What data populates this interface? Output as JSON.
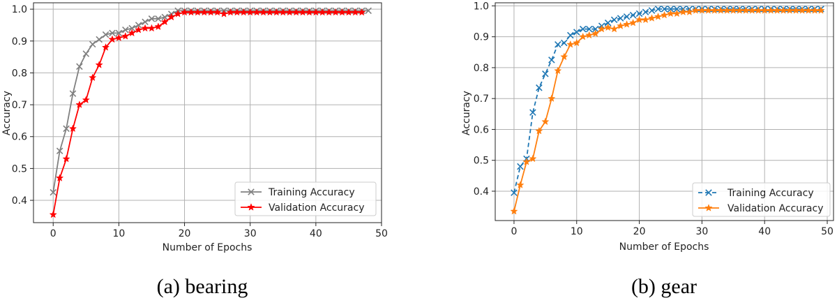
{
  "chart_data": [
    {
      "type": "line",
      "caption": "(a) bearing",
      "xlabel": "Number of Epochs",
      "ylabel": "Accuracy",
      "xlim": [
        -3,
        50
      ],
      "ylim": [
        0.33,
        1.02
      ],
      "xticks": [
        "0",
        "10",
        "20",
        "30",
        "40",
        "50"
      ],
      "yticks": [
        "0.4",
        "0.5",
        "0.6",
        "0.7",
        "0.8",
        "0.9",
        "1.0"
      ],
      "grid": true,
      "legend_position": "lower-right",
      "series": [
        {
          "name": "Training Accuracy",
          "color": "#808080",
          "marker": "x",
          "linestyle": "solid",
          "x": [
            0,
            1,
            2,
            3,
            4,
            5,
            6,
            7,
            8,
            9,
            10,
            11,
            12,
            13,
            14,
            15,
            16,
            17,
            18,
            19,
            20,
            21,
            22,
            23,
            24,
            25,
            26,
            27,
            28,
            29,
            30,
            31,
            32,
            33,
            34,
            35,
            36,
            37,
            38,
            39,
            40,
            41,
            42,
            43,
            44,
            45,
            46,
            47,
            48
          ],
          "values": [
            0.425,
            0.555,
            0.625,
            0.735,
            0.82,
            0.86,
            0.89,
            0.905,
            0.92,
            0.925,
            0.925,
            0.935,
            0.94,
            0.95,
            0.96,
            0.97,
            0.97,
            0.975,
            0.985,
            0.995,
            0.995,
            0.995,
            0.995,
            0.995,
            0.995,
            0.995,
            0.995,
            0.995,
            0.995,
            0.995,
            0.995,
            0.995,
            0.995,
            0.995,
            0.995,
            0.995,
            0.995,
            0.995,
            0.995,
            0.995,
            0.995,
            0.995,
            0.995,
            0.995,
            0.995,
            0.995,
            0.995,
            0.995,
            0.995
          ]
        },
        {
          "name": "Validation Accuracy",
          "color": "#ff0000",
          "marker": "star",
          "linestyle": "solid",
          "x": [
            0,
            1,
            2,
            3,
            4,
            5,
            6,
            7,
            8,
            9,
            10,
            11,
            12,
            13,
            14,
            15,
            16,
            17,
            18,
            19,
            20,
            21,
            22,
            23,
            24,
            25,
            26,
            27,
            28,
            29,
            30,
            31,
            32,
            33,
            34,
            35,
            36,
            37,
            38,
            39,
            40,
            41,
            42,
            43,
            44,
            45,
            46,
            47
          ],
          "values": [
            0.355,
            0.47,
            0.53,
            0.625,
            0.7,
            0.715,
            0.785,
            0.825,
            0.88,
            0.905,
            0.91,
            0.915,
            0.925,
            0.935,
            0.94,
            0.94,
            0.945,
            0.96,
            0.975,
            0.985,
            0.99,
            0.99,
            0.99,
            0.99,
            0.99,
            0.99,
            0.985,
            0.99,
            0.99,
            0.99,
            0.99,
            0.99,
            0.99,
            0.99,
            0.99,
            0.99,
            0.99,
            0.99,
            0.99,
            0.99,
            0.99,
            0.99,
            0.99,
            0.99,
            0.99,
            0.99,
            0.99,
            0.99
          ]
        }
      ]
    },
    {
      "type": "line",
      "caption": "(b) gear",
      "xlabel": "Number of Epochs",
      "ylabel": "Accuracy",
      "xlim": [
        -3,
        51
      ],
      "ylim": [
        0.305,
        1.01
      ],
      "xticks": [
        "0",
        "10",
        "20",
        "30",
        "40",
        "50"
      ],
      "yticks": [
        "0.4",
        "0.5",
        "0.6",
        "0.7",
        "0.8",
        "0.9",
        "1.0"
      ],
      "grid": true,
      "legend_position": "lower-right",
      "series": [
        {
          "name": "Training Accuracy",
          "color": "#1f77b4",
          "marker": "x",
          "linestyle": "dashed",
          "x": [
            0,
            1,
            2,
            3,
            4,
            5,
            6,
            7,
            8,
            9,
            10,
            11,
            12,
            13,
            14,
            15,
            16,
            17,
            18,
            19,
            20,
            21,
            22,
            23,
            24,
            25,
            26,
            27,
            28,
            29,
            30,
            31,
            32,
            33,
            34,
            35,
            36,
            37,
            38,
            39,
            40,
            41,
            42,
            43,
            44,
            45,
            46,
            47,
            48,
            49
          ],
          "values": [
            0.395,
            0.48,
            0.505,
            0.655,
            0.735,
            0.78,
            0.825,
            0.875,
            0.88,
            0.905,
            0.915,
            0.925,
            0.925,
            0.925,
            0.935,
            0.945,
            0.955,
            0.96,
            0.965,
            0.97,
            0.975,
            0.98,
            0.985,
            0.99,
            0.99,
            0.99,
            0.99,
            0.99,
            0.99,
            0.99,
            0.99,
            0.99,
            0.99,
            0.99,
            0.99,
            0.99,
            0.99,
            0.99,
            0.99,
            0.99,
            0.99,
            0.99,
            0.99,
            0.99,
            0.99,
            0.99,
            0.99,
            0.99,
            0.99,
            0.99
          ]
        },
        {
          "name": "Validation Accuracy",
          "color": "#ff7f0e",
          "marker": "star",
          "linestyle": "solid",
          "x": [
            0,
            1,
            2,
            3,
            4,
            5,
            6,
            7,
            8,
            9,
            10,
            11,
            12,
            13,
            14,
            15,
            16,
            17,
            18,
            19,
            20,
            21,
            22,
            23,
            24,
            25,
            26,
            27,
            28,
            29,
            30,
            31,
            32,
            33,
            34,
            35,
            36,
            37,
            38,
            39,
            40,
            41,
            42,
            43,
            44,
            45,
            46,
            47,
            48,
            49
          ],
          "values": [
            0.335,
            0.42,
            0.495,
            0.505,
            0.595,
            0.625,
            0.7,
            0.79,
            0.835,
            0.875,
            0.88,
            0.9,
            0.905,
            0.91,
            0.925,
            0.93,
            0.925,
            0.935,
            0.94,
            0.945,
            0.955,
            0.955,
            0.96,
            0.965,
            0.97,
            0.975,
            0.975,
            0.98,
            0.98,
            0.985,
            0.985,
            0.985,
            0.985,
            0.985,
            0.985,
            0.985,
            0.985,
            0.985,
            0.985,
            0.985,
            0.985,
            0.985,
            0.985,
            0.985,
            0.985,
            0.985,
            0.985,
            0.985,
            0.985,
            0.985
          ]
        }
      ]
    }
  ]
}
